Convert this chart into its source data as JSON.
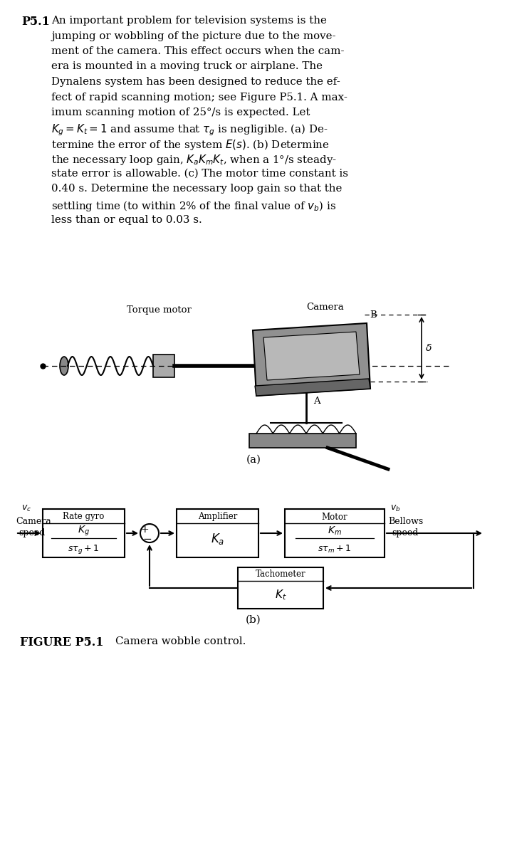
{
  "bg_color": "#ffffff",
  "text_color": "#000000",
  "p51_label": "P5.1",
  "text_lines": [
    "An important problem for television systems is the",
    "jumping or wobbling of the picture due to the move-",
    "ment of the camera. This effect occurs when the cam-",
    "era is mounted in a moving truck or airplane. The",
    "Dynalens system has been designed to reduce the ef-",
    "fect of rapid scanning motion; see Figure P5.1. A max-",
    "imum scanning motion of 25°/s is expected. Let",
    "$K_g = K_t = 1$ and assume that $\\tau_g$ is negligible. (a) De-",
    "termine the error of the system $E(s)$. (b) Determine",
    "the necessary loop gain, $K_aK_mK_t$, when a 1°/s steady-",
    "state error is allowable. (c) The motor time constant is",
    "0.40 s. Determine the necessary loop gain so that the",
    "settling time (to within 2% of the final value of $v_b$) is",
    "less than or equal to 0.03 s."
  ],
  "sub_a": "(a)",
  "sub_b": "(b)",
  "fig_label": "FIGURE P5.1",
  "fig_caption": "Camera wobble control.",
  "torque_motor_label": "Torque motor",
  "camera_label": "Camera",
  "label_B": "B",
  "label_A": "A",
  "label_delta": "$\\delta$",
  "label_vc": "$v_c$",
  "label_vb": "$v_b$",
  "label_camera_speed": [
    "Camera",
    "speed"
  ],
  "label_bellows": [
    "Bellows",
    "speed"
  ],
  "label_rg_title": "Rate gyro",
  "label_rg_num": "$K_g$",
  "label_rg_den": "$s\\tau_g + 1$",
  "label_amp_title": "Amplifier",
  "label_amp_content": "$K_a$",
  "label_mot_title": "Motor",
  "label_mot_num": "$K_m$",
  "label_mot_den": "$s\\tau_m + 1$",
  "label_tach_title": "Tachometer",
  "label_tach_content": "$K_t$",
  "plus_sign": "+",
  "minus_sign": "−"
}
